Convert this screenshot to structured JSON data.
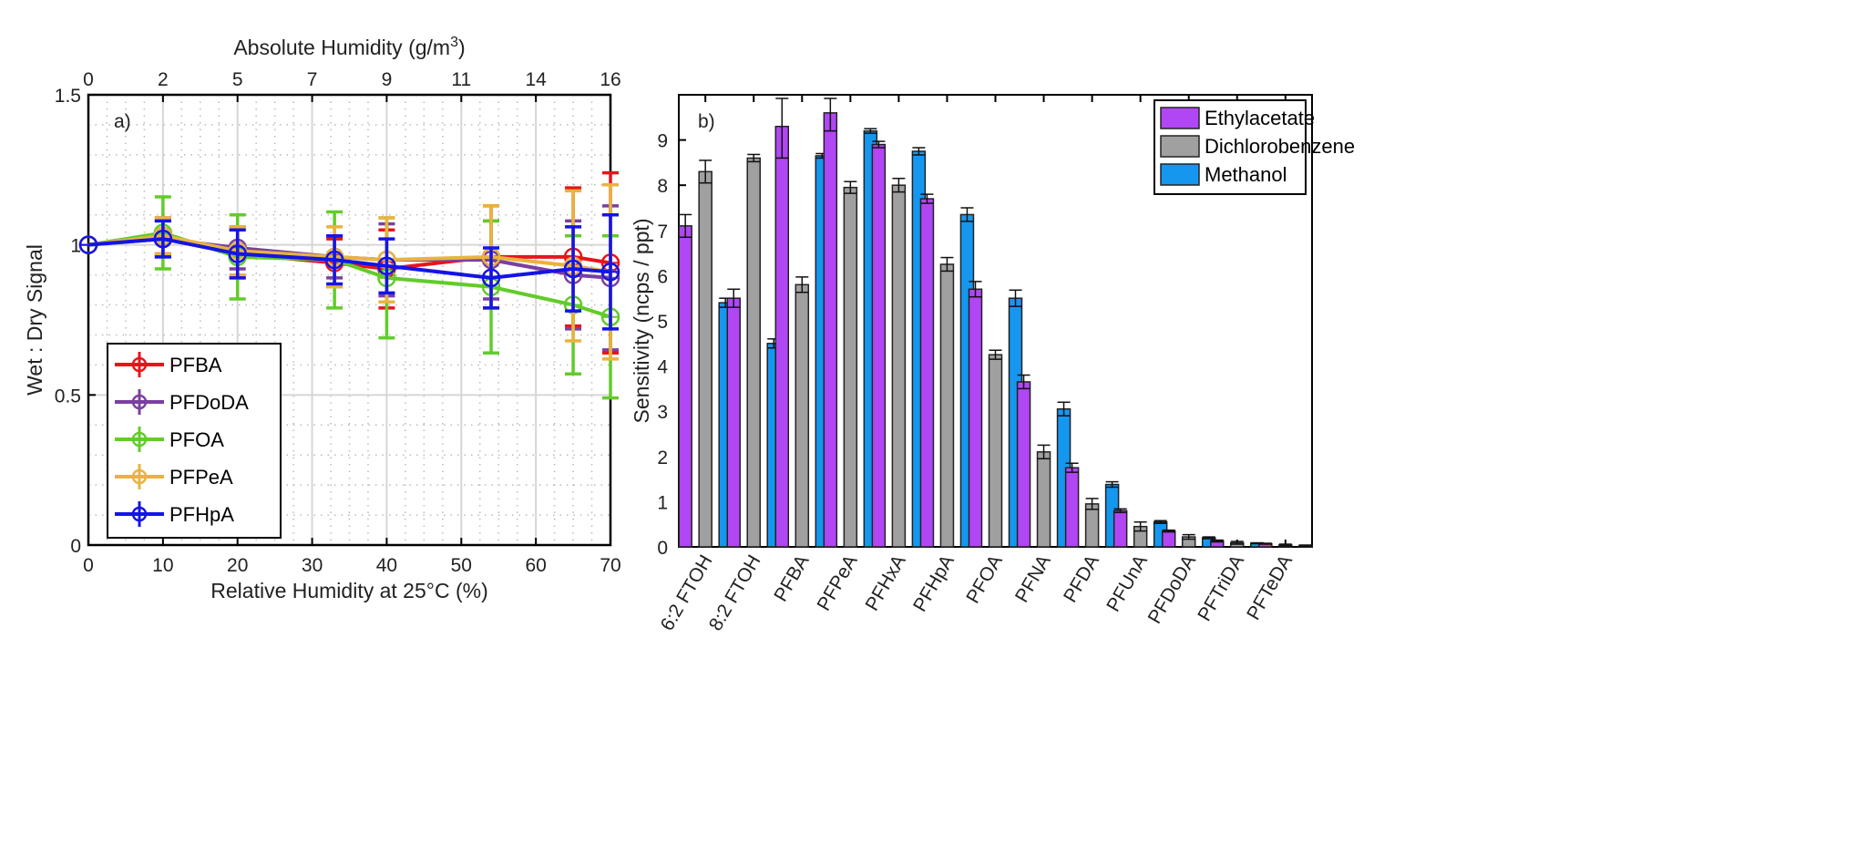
{
  "chart_data": [
    {
      "type": "line",
      "panel_label": "a)",
      "xlabel": "Relative Humidity at 25°C (%)",
      "x2label": "Absolute Humidity (g/m3)",
      "ylabel": "Wet : Dry Signal",
      "xlim": [
        0,
        70
      ],
      "ylim": [
        0,
        1.5
      ],
      "xticks": [
        0,
        10,
        20,
        30,
        40,
        50,
        60,
        70
      ],
      "x2ticks": [
        {
          "at": 0,
          "label": "0"
        },
        {
          "at": 10,
          "label": "2"
        },
        {
          "at": 20,
          "label": "5"
        },
        {
          "at": 30,
          "label": "7"
        },
        {
          "at": 40,
          "label": "9"
        },
        {
          "at": 50,
          "label": "11"
        },
        {
          "at": 60,
          "label": "14"
        },
        {
          "at": 70,
          "label": "16"
        }
      ],
      "yticks": [
        {
          "v": 0,
          "label": "0"
        },
        {
          "v": 0.5,
          "label": "0.5"
        },
        {
          "v": 1,
          "label": "1"
        },
        {
          "v": 1.5,
          "label": "1.5"
        }
      ],
      "grid": true,
      "legend_position": "bottom-left",
      "x": [
        0,
        10,
        20,
        33,
        40,
        54,
        65,
        70
      ],
      "series": [
        {
          "name": "PFBA",
          "color": "#e8141b",
          "values": [
            1,
            1.03,
            0.97,
            0.94,
            0.92,
            0.96,
            0.96,
            0.94
          ],
          "errors": [
            0,
            0.06,
            0.08,
            0.08,
            0.13,
            0.17,
            0.23,
            0.3
          ]
        },
        {
          "name": "PFDoDA",
          "color": "#7b3fa0",
          "values": [
            1,
            1.02,
            0.99,
            0.96,
            0.95,
            0.95,
            0.9,
            0.89
          ],
          "errors": [
            0,
            0.06,
            0.07,
            0.07,
            0.12,
            0.13,
            0.18,
            0.24
          ]
        },
        {
          "name": "PFOA",
          "color": "#62cc2a",
          "values": [
            1,
            1.04,
            0.96,
            0.95,
            0.89,
            0.86,
            0.8,
            0.76
          ],
          "errors": [
            0,
            0.12,
            0.14,
            0.16,
            0.2,
            0.22,
            0.23,
            0.27
          ]
        },
        {
          "name": "PFPeA",
          "color": "#e9b33e",
          "values": [
            1,
            1.03,
            0.98,
            0.96,
            0.95,
            0.96,
            0.93,
            0.91
          ],
          "errors": [
            0,
            0.06,
            0.08,
            0.1,
            0.14,
            0.17,
            0.25,
            0.29
          ]
        },
        {
          "name": "PFHpA",
          "color": "#1414e6",
          "values": [
            1,
            1.02,
            0.97,
            0.95,
            0.93,
            0.89,
            0.92,
            0.91
          ],
          "errors": [
            0,
            0.06,
            0.08,
            0.08,
            0.09,
            0.1,
            0.14,
            0.19
          ]
        }
      ]
    },
    {
      "type": "bar",
      "panel_label": "b)",
      "ylabel": "Sensitivity (ncps / ppt)",
      "ylim": [
        0,
        10
      ],
      "yticks": [
        0,
        1,
        2,
        3,
        4,
        5,
        6,
        7,
        8,
        9
      ],
      "legend_position": "top-right",
      "categories": [
        "6:2 FTOH",
        "8:2 FTOH",
        "PFBA",
        "PFPeA",
        "PFHxA",
        "PFHpA",
        "PFOA",
        "PFNA",
        "PFDA",
        "PFUnA",
        "PFDoDA",
        "PFTriDA",
        "PFTeDA"
      ],
      "series": [
        {
          "name": "Ethylacetate",
          "color": "#b146f5",
          "values": [
            7.1,
            5.5,
            9.3,
            9.6,
            8.9,
            7.7,
            5.7,
            3.65,
            1.75,
            0.8,
            0.35,
            0.13,
            0.07
          ],
          "errors": [
            0.25,
            0.2,
            0.7,
            0.4,
            0.07,
            0.1,
            0.17,
            0.15,
            0.1,
            0.04,
            0.02,
            0.02,
            0.01
          ]
        },
        {
          "name": "Dichlorobenzene",
          "color": "#a0a0a0",
          "values": [
            8.3,
            8.6,
            5.8,
            7.95,
            8.0,
            6.25,
            4.25,
            2.1,
            0.95,
            0.45,
            0.22,
            0.09,
            0.04
          ],
          "errors": [
            0.25,
            0.08,
            0.17,
            0.13,
            0.15,
            0.15,
            0.1,
            0.15,
            0.12,
            0.1,
            0.05,
            0.03,
            0.02
          ]
        },
        {
          "name": "Methanol",
          "color": "#1597f0",
          "values": [
            5.4,
            4.5,
            8.65,
            9.2,
            8.75,
            7.35,
            5.5,
            3.05,
            1.38,
            0.55,
            0.2,
            0.08,
            0.03
          ],
          "errors": [
            0.1,
            0.1,
            0.05,
            0.05,
            0.08,
            0.15,
            0.18,
            0.15,
            0.06,
            0.03,
            0.02,
            0.01,
            0.01
          ]
        }
      ]
    }
  ]
}
